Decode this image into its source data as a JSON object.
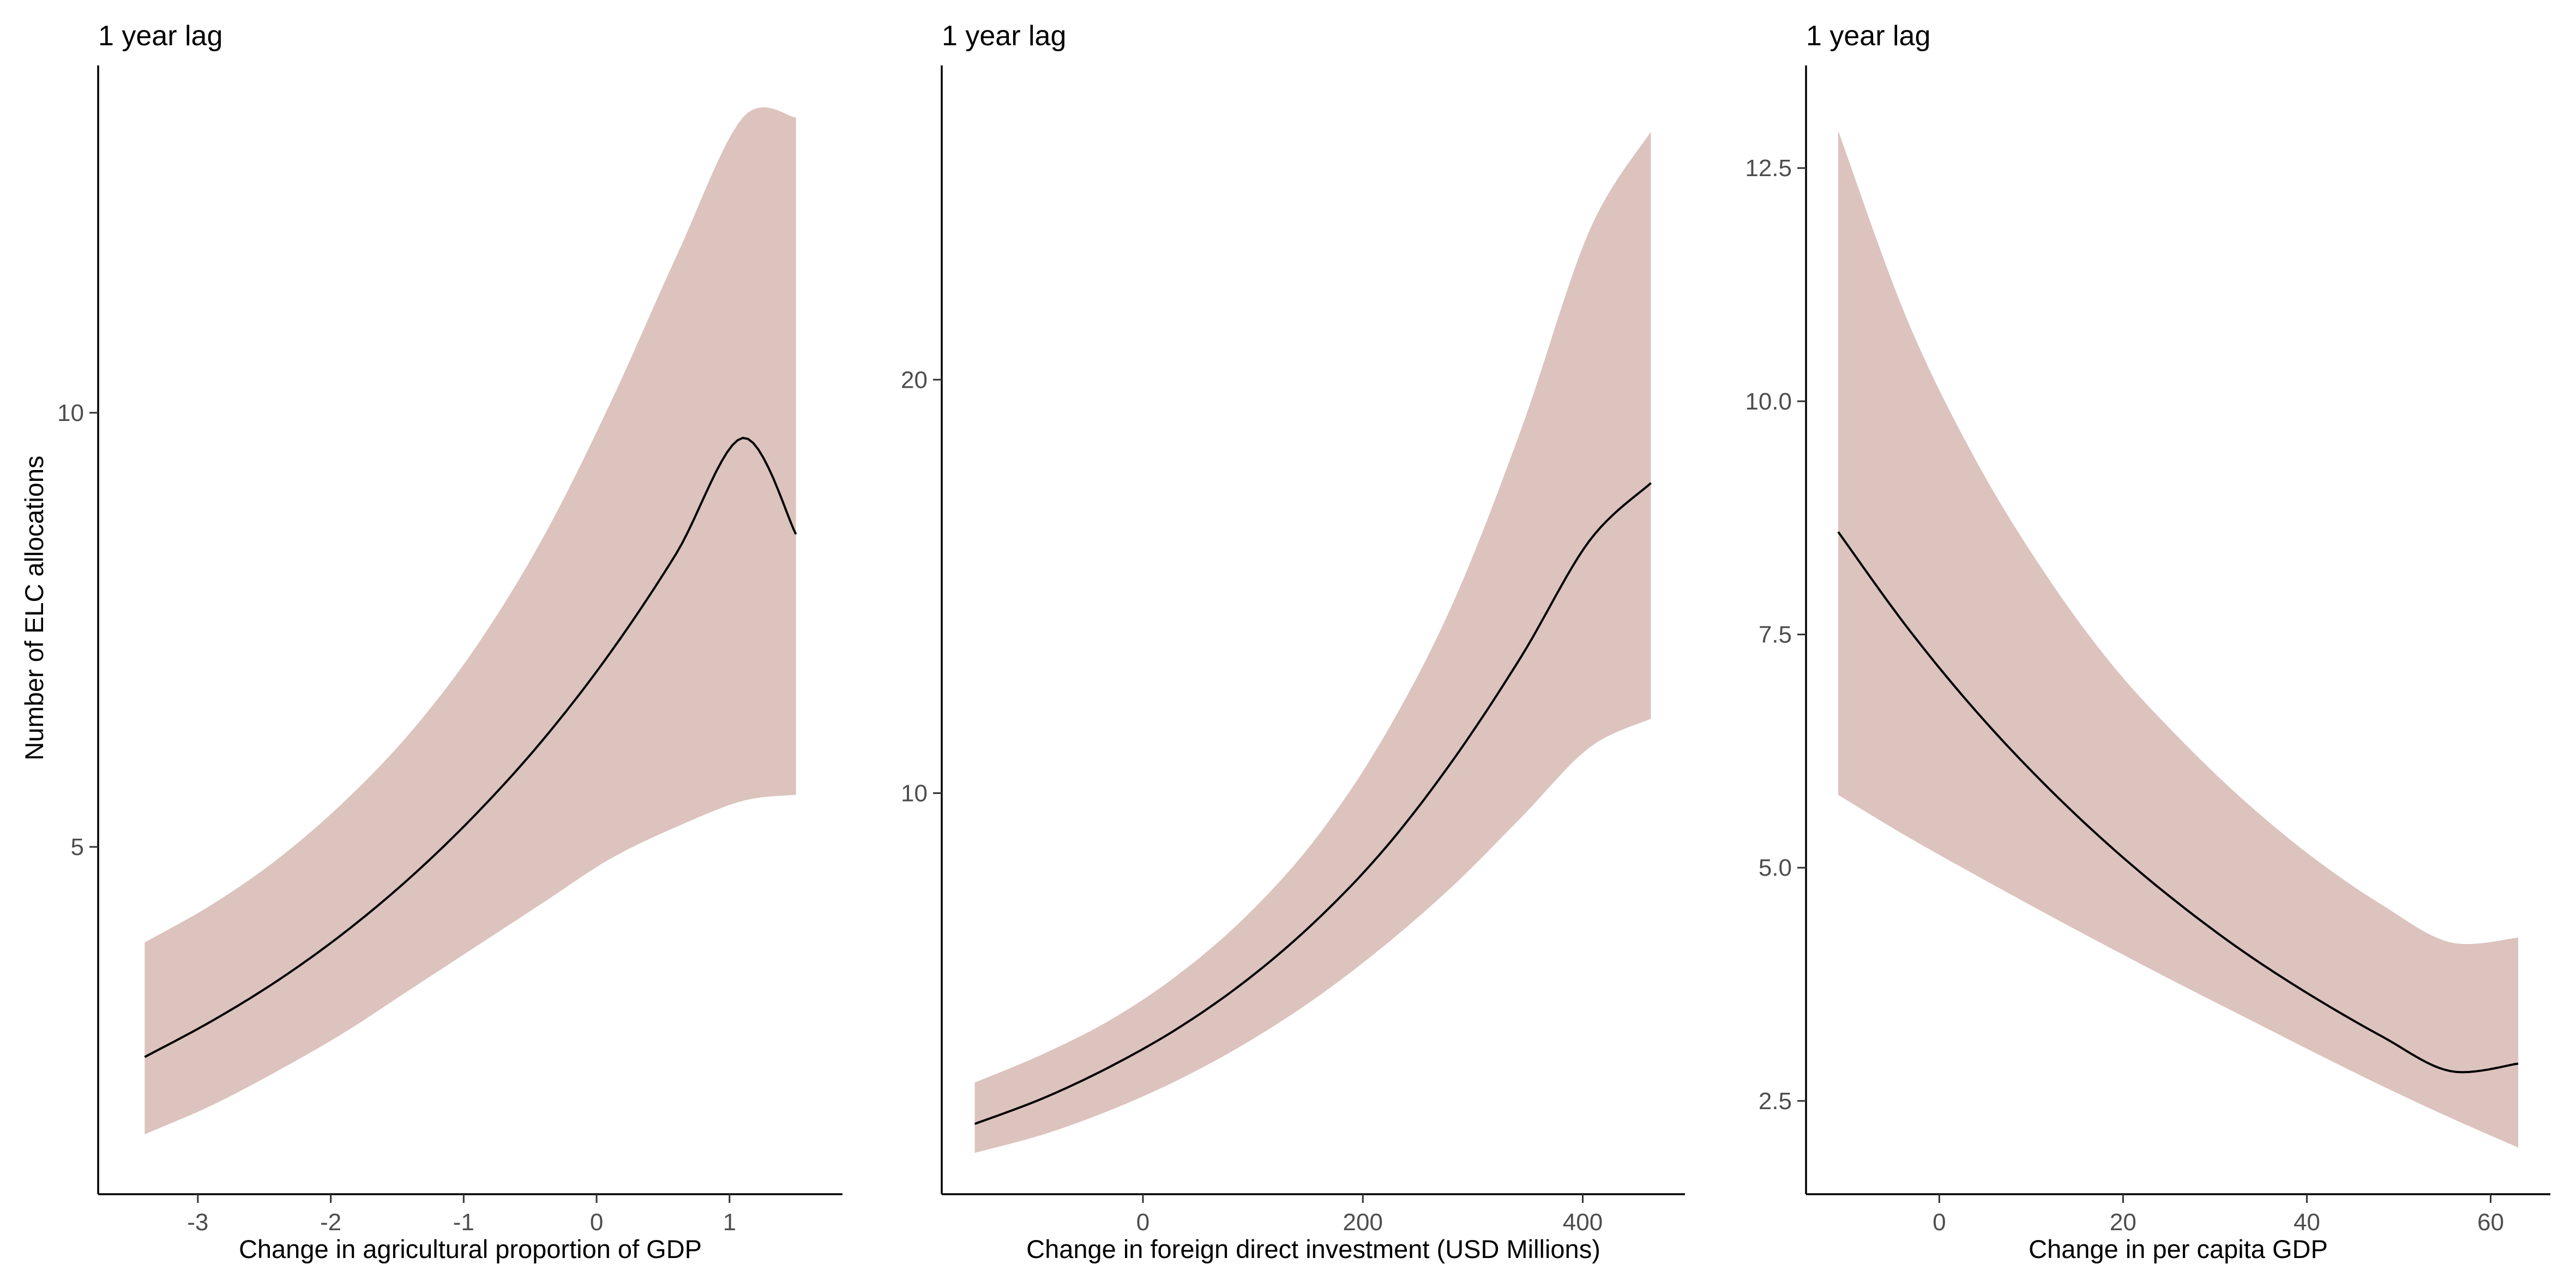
{
  "style": {
    "ribbon_color": "#dcc3be",
    "line_color": "#000000",
    "background": "#ffffff"
  },
  "ylabel": "Number of ELC allocations",
  "chart_data": [
    {
      "type": "line",
      "title": "1 year lag",
      "xlabel": "Change in agricultural proportion of GDP",
      "ylabel": "Number of ELC allocations",
      "grid": false,
      "xlim": [
        -3.75,
        1.85
      ],
      "ylim": [
        1.0,
        14.0
      ],
      "x_ticks": [
        -3,
        -2,
        -1,
        0,
        1
      ],
      "x_tick_labels": [
        "-3",
        "-2",
        "-1",
        "0",
        "1"
      ],
      "y_ticks": [
        5,
        10
      ],
      "y_tick_labels": [
        "5",
        "10"
      ],
      "series": [
        {
          "x": [
            -3.4,
            -2.9,
            -2.4,
            -1.9,
            -1.4,
            -0.9,
            -0.4,
            0.1,
            0.6,
            1.1,
            1.5
          ],
          "y": [
            2.58,
            2.99,
            3.46,
            4.01,
            4.65,
            5.39,
            6.24,
            7.23,
            8.38,
            9.71,
            8.6
          ],
          "lower": [
            1.69,
            2.02,
            2.42,
            2.86,
            3.36,
            3.86,
            4.36,
            4.86,
            5.23,
            5.53,
            5.6
          ],
          "upper": [
            3.9,
            4.33,
            4.86,
            5.52,
            6.32,
            7.32,
            8.57,
            10.1,
            11.8,
            13.4,
            13.4
          ]
        }
      ]
    },
    {
      "type": "line",
      "title": "1 year lag",
      "xlabel": "Change in foreign direct investment (USD Millions)",
      "ylabel": "",
      "grid": false,
      "xlim": [
        -183,
        493
      ],
      "ylim": [
        0.3,
        27.6
      ],
      "x_ticks": [
        0,
        200,
        400
      ],
      "x_tick_labels": [
        "0",
        "200",
        "400"
      ],
      "y_ticks": [
        10,
        20
      ],
      "y_tick_labels": [
        "10",
        "20"
      ],
      "series": [
        {
          "x": [
            -153,
            -90,
            -28,
            34,
            96,
            158,
            220,
            282,
            344,
            406,
            462
          ],
          "y": [
            2.0,
            2.63,
            3.41,
            4.35,
            5.51,
            6.93,
            8.66,
            10.8,
            13.3,
            16.1,
            17.5
          ],
          "lower": [
            1.3,
            1.75,
            2.35,
            3.09,
            3.99,
            5.06,
            6.32,
            7.76,
            9.41,
            11.1,
            11.8
          ],
          "upper": [
            3.0,
            3.7,
            4.54,
            5.65,
            7.08,
            8.93,
            11.4,
            14.6,
            18.8,
            23.6,
            26.0
          ]
        }
      ]
    },
    {
      "type": "line",
      "title": "1 year lag",
      "xlabel": "Change in per capita GDP",
      "ylabel": "",
      "grid": false,
      "xlim": [
        -14.5,
        66.5
      ],
      "ylim": [
        1.5,
        13.6
      ],
      "x_ticks": [
        0,
        20,
        40,
        60
      ],
      "x_tick_labels": [
        "0",
        "20",
        "40",
        "60"
      ],
      "y_ticks": [
        2.5,
        5.0,
        7.5,
        10.0,
        12.5
      ],
      "y_tick_labels": [
        "2.5",
        "5.0",
        "7.5",
        "10.0",
        "12.5"
      ],
      "series": [
        {
          "x": [
            -11,
            -3.6,
            3.8,
            11.2,
            18.6,
            26,
            33.4,
            40.8,
            48.2,
            55.6,
            63
          ],
          "y": [
            8.6,
            7.59,
            6.7,
            5.92,
            5.23,
            4.62,
            4.08,
            3.61,
            3.19,
            2.82,
            2.9
          ],
          "lower": [
            5.78,
            5.34,
            4.93,
            4.53,
            4.14,
            3.76,
            3.39,
            3.02,
            2.66,
            2.32,
            2.0
          ],
          "upper": [
            12.9,
            10.9,
            9.4,
            8.2,
            7.2,
            6.4,
            5.7,
            5.1,
            4.6,
            4.2,
            4.25
          ]
        }
      ]
    }
  ]
}
